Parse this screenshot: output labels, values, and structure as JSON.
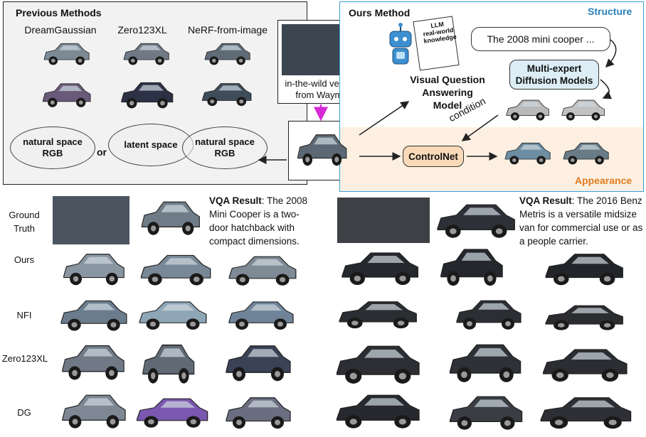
{
  "previous": {
    "title": "Previous Methods",
    "methods": [
      "DreamGaussian",
      "Zero123XL",
      "NeRF-from-image"
    ],
    "spaces": {
      "left_ellipse": "natural space\nRGB",
      "or": "or",
      "middle_ellipse": "latent space",
      "right_ellipse": "natural space\nRGB"
    }
  },
  "input": {
    "caption": "in-the-wild vehicle\nfrom Waymo"
  },
  "ours": {
    "title": "Ours Method",
    "structure": "Structure",
    "appearance": "Appearance",
    "llm_doc": "LLM\nreal-world\nknowledge",
    "prompt": "The 2008 mini cooper ...",
    "vqa_model": "Visual Question\nAnswering Model",
    "diffusion": "Multi-expert\nDiffusion Models",
    "condition": "condition",
    "controlnet": "ControlNet"
  },
  "results": {
    "row_labels": [
      "Ground\nTruth",
      "Ours",
      "NFI",
      "Zero123XL",
      "DG"
    ],
    "left_vqa_bold": "VQA Result",
    "left_vqa_text": ": The 2008 Mini Cooper is a two-door hatchback with compact dimensions.",
    "right_vqa_bold": "VQA Result",
    "right_vqa_text": ": The 2016 Benz Metris is a versatile midsize van for commercial use or as a people carrier."
  },
  "colors": {
    "structure_blue": "#2a7fb8",
    "appearance_orange": "#e07b20",
    "controlnet_fill": "#f9d9b8",
    "diffusion_fill": "#dcedf5",
    "magenta_arrow": "#d62ad6"
  }
}
